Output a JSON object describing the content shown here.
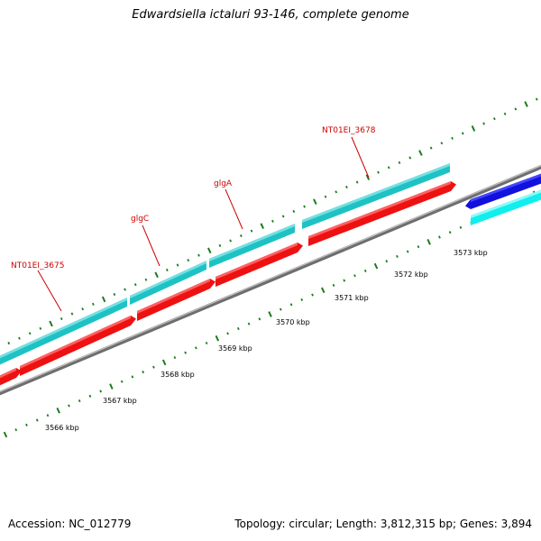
{
  "title": "Edwardsiella ictaluri 93-146, complete genome",
  "accession_text": "Accession: NC_012779",
  "stats_text": "Topology: circular; Length: 3,812,315 bp; Genes: 3,894",
  "colors": {
    "forward_cds": "#1fc2c4",
    "forward_cds_top": "#7ee3e4",
    "reverse_cds": "#ee1111",
    "reverse_cds_top": "#ff6a6a",
    "blue_feature": "#1111dd",
    "cyan_feature": "#11eeee",
    "backbone": "#888888",
    "ticks": "#1f7a1f",
    "gene_label": "#cc0000"
  },
  "scale_labels": [
    "3566 kbp",
    "3567 kbp",
    "3568 kbp",
    "3569 kbp",
    "3570 kbp",
    "3571 kbp",
    "3572 kbp",
    "3573 kbp"
  ],
  "gene_labels": [
    "NT01EI_3675",
    "glgC",
    "glgA",
    "NT01EI_3678"
  ]
}
